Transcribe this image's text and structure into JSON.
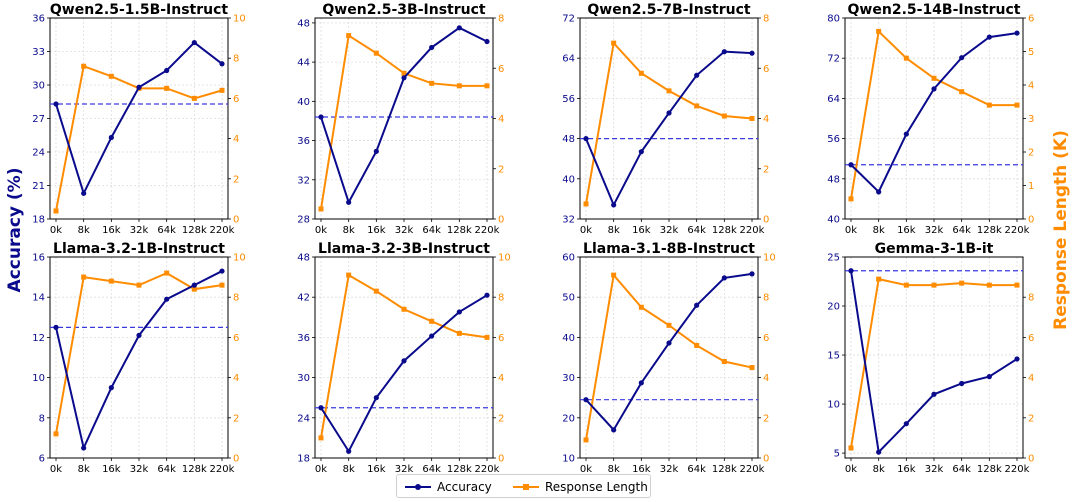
{
  "figure": {
    "left_label": "Accuracy (%)",
    "right_label": "Response Length (K)"
  },
  "legend": {
    "accuracy": "Accuracy",
    "length": "Response Length"
  },
  "colors": {
    "accuracy": "#0a0a8c",
    "length": "#ff8c00",
    "baseline": "#3a3ae0",
    "grid": "#dddddd"
  },
  "chart_data": [
    {
      "type": "line",
      "title": "Qwen2.5-1.5B-Instruct",
      "categories": [
        "0k",
        "8k",
        "16k",
        "32k",
        "64k",
        "128k",
        "220k"
      ],
      "series": [
        {
          "name": "Accuracy",
          "axis": "left",
          "values": [
            28.3,
            20.3,
            25.3,
            29.8,
            31.3,
            33.8,
            31.9
          ]
        },
        {
          "name": "Response Length",
          "axis": "right",
          "values": [
            0.4,
            7.6,
            7.1,
            6.5,
            6.5,
            6.0,
            6.4
          ]
        }
      ],
      "baseline": 28.3,
      "ylim_left": [
        18,
        36
      ],
      "yticks_left": [
        18,
        21,
        24,
        27,
        30,
        33,
        36
      ],
      "ylim_right": [
        0,
        10
      ],
      "yticks_right": [
        0,
        2,
        4,
        6,
        8,
        10
      ]
    },
    {
      "type": "line",
      "title": "Qwen2.5-3B-Instruct",
      "categories": [
        "0k",
        "8k",
        "16k",
        "32k",
        "64k",
        "128k",
        "220k"
      ],
      "series": [
        {
          "name": "Accuracy",
          "axis": "left",
          "values": [
            38.4,
            29.7,
            34.9,
            42.4,
            45.5,
            47.5,
            46.1
          ]
        },
        {
          "name": "Response Length",
          "axis": "right",
          "values": [
            0.4,
            7.3,
            6.6,
            5.8,
            5.4,
            5.3,
            5.3
          ]
        }
      ],
      "baseline": 38.4,
      "ylim_left": [
        28,
        48.5
      ],
      "yticks_left": [
        28,
        32,
        36,
        40,
        44,
        48
      ],
      "ylim_right": [
        0,
        8
      ],
      "yticks_right": [
        0,
        2,
        4,
        6,
        8
      ]
    },
    {
      "type": "line",
      "title": "Qwen2.5-7B-Instruct",
      "categories": [
        "0k",
        "8k",
        "16k",
        "32k",
        "64k",
        "128k",
        "220k"
      ],
      "series": [
        {
          "name": "Accuracy",
          "axis": "left",
          "values": [
            48.0,
            34.8,
            45.4,
            53.1,
            60.6,
            65.3,
            65.0
          ]
        },
        {
          "name": "Response Length",
          "axis": "right",
          "values": [
            0.6,
            7.0,
            5.8,
            5.1,
            4.5,
            4.1,
            4.0
          ]
        }
      ],
      "baseline": 48.0,
      "ylim_left": [
        32,
        72
      ],
      "yticks_left": [
        32,
        40,
        48,
        56,
        64,
        72
      ],
      "ylim_right": [
        0,
        8
      ],
      "yticks_right": [
        0,
        2,
        4,
        6,
        8
      ]
    },
    {
      "type": "line",
      "title": "Qwen2.5-14B-Instruct",
      "categories": [
        "0k",
        "8k",
        "16k",
        "32k",
        "64k",
        "128k",
        "220k"
      ],
      "series": [
        {
          "name": "Accuracy",
          "axis": "left",
          "values": [
            50.8,
            45.4,
            56.9,
            65.9,
            72.1,
            76.2,
            77.0
          ]
        },
        {
          "name": "Response Length",
          "axis": "right",
          "values": [
            0.6,
            5.6,
            4.8,
            4.2,
            3.8,
            3.4,
            3.4
          ]
        }
      ],
      "baseline": 50.8,
      "ylim_left": [
        40,
        80
      ],
      "yticks_left": [
        40,
        48,
        56,
        64,
        72,
        80
      ],
      "ylim_right": [
        0,
        6
      ],
      "yticks_right": [
        0,
        1,
        2,
        3,
        4,
        5,
        6
      ]
    },
    {
      "type": "line",
      "title": "Llama-3.2-1B-Instruct",
      "categories": [
        "0k",
        "8k",
        "16k",
        "32k",
        "64k",
        "128k",
        "220k"
      ],
      "series": [
        {
          "name": "Accuracy",
          "axis": "left",
          "values": [
            12.5,
            6.5,
            9.5,
            12.1,
            13.9,
            14.6,
            15.3
          ]
        },
        {
          "name": "Response Length",
          "axis": "right",
          "values": [
            1.2,
            9.0,
            8.8,
            8.6,
            9.2,
            8.4,
            8.6
          ]
        }
      ],
      "baseline": 12.5,
      "ylim_left": [
        6,
        16
      ],
      "yticks_left": [
        6,
        8,
        10,
        12,
        14,
        16
      ],
      "ylim_right": [
        0,
        10
      ],
      "yticks_right": [
        0,
        2,
        4,
        6,
        8,
        10
      ]
    },
    {
      "type": "line",
      "title": "Llama-3.2-3B-Instruct",
      "categories": [
        "0k",
        "8k",
        "16k",
        "32k",
        "64k",
        "128k",
        "220k"
      ],
      "series": [
        {
          "name": "Accuracy",
          "axis": "left",
          "values": [
            25.5,
            19.0,
            27.0,
            32.5,
            36.2,
            39.8,
            42.3
          ]
        },
        {
          "name": "Response Length",
          "axis": "right",
          "values": [
            1.0,
            9.1,
            8.3,
            7.4,
            6.8,
            6.2,
            6.0
          ]
        }
      ],
      "baseline": 25.5,
      "ylim_left": [
        18,
        48
      ],
      "yticks_left": [
        18,
        24,
        30,
        36,
        42,
        48
      ],
      "ylim_right": [
        0,
        10
      ],
      "yticks_right": [
        0,
        2,
        4,
        6,
        8,
        10
      ]
    },
    {
      "type": "line",
      "title": "Llama-3.1-8B-Instruct",
      "categories": [
        "0k",
        "8k",
        "16k",
        "32k",
        "64k",
        "128k",
        "220k"
      ],
      "series": [
        {
          "name": "Accuracy",
          "axis": "left",
          "values": [
            24.5,
            17.0,
            28.7,
            38.6,
            48.0,
            54.8,
            55.8
          ]
        },
        {
          "name": "Response Length",
          "axis": "right",
          "values": [
            0.9,
            9.1,
            7.5,
            6.6,
            5.6,
            4.8,
            4.5
          ]
        }
      ],
      "baseline": 24.5,
      "ylim_left": [
        10,
        60
      ],
      "yticks_left": [
        10,
        20,
        30,
        40,
        50,
        60
      ],
      "ylim_right": [
        0,
        10
      ],
      "yticks_right": [
        0,
        2,
        4,
        6,
        8,
        10
      ]
    },
    {
      "type": "line",
      "title": "Gemma-3-1B-it",
      "categories": [
        "0k",
        "8k",
        "16k",
        "32k",
        "64k",
        "128k",
        "220k"
      ],
      "series": [
        {
          "name": "Accuracy",
          "axis": "left",
          "values": [
            23.6,
            5.1,
            8.0,
            11.0,
            12.1,
            12.8,
            14.6
          ]
        },
        {
          "name": "Response Length",
          "axis": "right",
          "values": [
            0.5,
            8.9,
            8.6,
            8.6,
            8.7,
            8.6,
            8.6
          ]
        }
      ],
      "baseline": 23.6,
      "ylim_left": [
        4.5,
        25
      ],
      "yticks_left": [
        5,
        10,
        15,
        20,
        25
      ],
      "ylim_right": [
        0,
        10
      ],
      "yticks_right": [
        0,
        2,
        4,
        6,
        8
      ]
    }
  ]
}
